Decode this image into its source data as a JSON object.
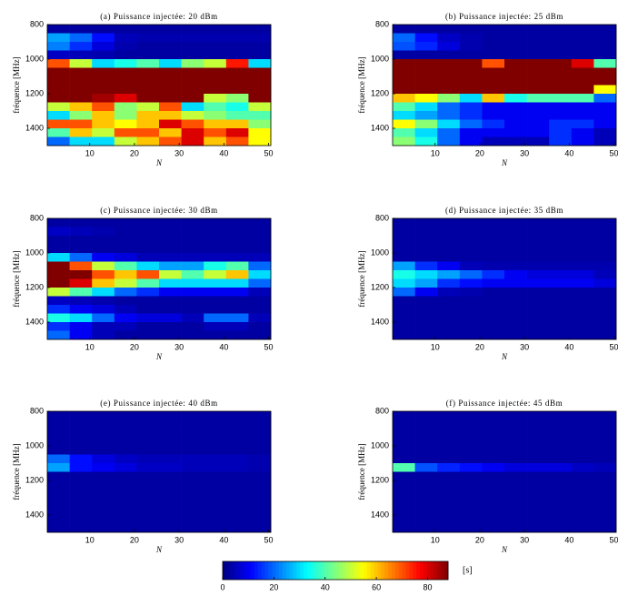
{
  "chart_data": [
    {
      "type": "heatmap",
      "title": "(a) Puissance injectée: 20 dBm",
      "xlabel": "N",
      "ylabel": "fréquence [MHz]",
      "x": [
        0.5,
        5.5,
        10.5,
        15.5,
        20.5,
        25.5,
        30.5,
        35.5,
        40.5,
        45.5,
        50.5
      ],
      "y": [
        800,
        850,
        900,
        950,
        1000,
        1050,
        1100,
        1150,
        1200,
        1250,
        1300,
        1350,
        1400,
        1450,
        1500
      ],
      "xlim": [
        0.5,
        50.5
      ],
      "ylim": [
        800,
        1500
      ],
      "y_reversed": true,
      "xticks": [
        10,
        20,
        30,
        40,
        50
      ],
      "yticks": [
        800,
        1000,
        1200,
        1400
      ],
      "values": [
        [
          3,
          3,
          3,
          3,
          3,
          3,
          3,
          3,
          3,
          3
        ],
        [
          25,
          20,
          12,
          5,
          4,
          4,
          4,
          4,
          4,
          4
        ],
        [
          22,
          15,
          8,
          4,
          3,
          3,
          3,
          3,
          3,
          3
        ],
        [
          6,
          5,
          4,
          3,
          3,
          3,
          3,
          3,
          3,
          3
        ],
        [
          70,
          50,
          30,
          35,
          40,
          30,
          45,
          50,
          75,
          30
        ],
        [
          88,
          88,
          88,
          88,
          88,
          88,
          88,
          88,
          88,
          88
        ],
        [
          88,
          88,
          88,
          88,
          88,
          88,
          88,
          88,
          88,
          88
        ],
        [
          88,
          88,
          88,
          88,
          88,
          88,
          88,
          88,
          88,
          88
        ],
        [
          88,
          88,
          85,
          80,
          88,
          88,
          88,
          50,
          45,
          88
        ],
        [
          50,
          60,
          70,
          45,
          50,
          70,
          30,
          40,
          35,
          50
        ],
        [
          30,
          45,
          60,
          45,
          60,
          60,
          50,
          45,
          40,
          40
        ],
        [
          70,
          70,
          60,
          55,
          60,
          80,
          70,
          60,
          60,
          45
        ],
        [
          40,
          60,
          50,
          70,
          70,
          60,
          80,
          70,
          80,
          55
        ],
        [
          20,
          30,
          30,
          50,
          60,
          70,
          80,
          60,
          70,
          55
        ]
      ]
    },
    {
      "type": "heatmap",
      "title": "(b) Puissance injectée: 25 dBm",
      "xlabel": "N",
      "ylabel": "fréquence [MHz]",
      "x": [
        0.5,
        5.5,
        10.5,
        15.5,
        20.5,
        25.5,
        30.5,
        35.5,
        40.5,
        45.5,
        50.5
      ],
      "y": [
        800,
        850,
        900,
        950,
        1000,
        1050,
        1100,
        1150,
        1200,
        1250,
        1300,
        1350,
        1400,
        1450,
        1500
      ],
      "xlim": [
        0.5,
        50.5
      ],
      "ylim": [
        800,
        1500
      ],
      "y_reversed": true,
      "xticks": [
        10,
        20,
        30,
        40,
        50
      ],
      "yticks": [
        800,
        1000,
        1200,
        1400
      ],
      "values": [
        [
          3,
          3,
          3,
          3,
          3,
          3,
          3,
          3,
          3,
          3
        ],
        [
          20,
          12,
          6,
          4,
          3,
          3,
          3,
          3,
          3,
          3
        ],
        [
          18,
          14,
          8,
          4,
          3,
          3,
          3,
          3,
          3,
          3
        ],
        [
          3,
          3,
          3,
          3,
          3,
          3,
          3,
          3,
          3,
          3
        ],
        [
          88,
          88,
          88,
          88,
          70,
          88,
          88,
          88,
          80,
          40
        ],
        [
          88,
          88,
          88,
          88,
          88,
          88,
          88,
          88,
          88,
          88
        ],
        [
          88,
          88,
          88,
          88,
          88,
          88,
          88,
          88,
          88,
          88
        ],
        [
          88,
          88,
          88,
          88,
          88,
          88,
          88,
          88,
          88,
          55
        ],
        [
          60,
          55,
          45,
          30,
          60,
          35,
          40,
          40,
          40,
          20
        ],
        [
          40,
          30,
          20,
          15,
          10,
          10,
          10,
          10,
          10,
          10
        ],
        [
          30,
          25,
          20,
          15,
          10,
          10,
          10,
          10,
          10,
          10
        ],
        [
          55,
          45,
          30,
          20,
          15,
          10,
          10,
          15,
          15,
          10
        ],
        [
          40,
          30,
          20,
          10,
          10,
          10,
          10,
          15,
          10,
          5
        ],
        [
          45,
          35,
          20,
          10,
          5,
          5,
          5,
          15,
          10,
          5
        ]
      ]
    },
    {
      "type": "heatmap",
      "title": "(c) Puissance injectée: 30 dBm",
      "xlabel": "N",
      "ylabel": "fréquence [MHz]",
      "x": [
        0.5,
        5.5,
        10.5,
        15.5,
        20.5,
        25.5,
        30.5,
        35.5,
        40.5,
        45.5,
        50.5
      ],
      "y": [
        800,
        850,
        900,
        950,
        1000,
        1050,
        1100,
        1150,
        1200,
        1250,
        1300,
        1350,
        1400,
        1450,
        1500
      ],
      "xlim": [
        0.5,
        50.5
      ],
      "ylim": [
        800,
        1500
      ],
      "y_reversed": true,
      "xticks": [
        10,
        20,
        30,
        40,
        50
      ],
      "yticks": [
        800,
        1000,
        1200,
        1400
      ],
      "values": [
        [
          3,
          3,
          3,
          3,
          3,
          3,
          3,
          3,
          3,
          3
        ],
        [
          6,
          5,
          4,
          3,
          3,
          3,
          3,
          3,
          3,
          3
        ],
        [
          3,
          3,
          3,
          3,
          3,
          3,
          3,
          3,
          3,
          3
        ],
        [
          3,
          3,
          3,
          3,
          3,
          3,
          3,
          3,
          3,
          3
        ],
        [
          30,
          20,
          10,
          8,
          5,
          5,
          5,
          5,
          5,
          5
        ],
        [
          88,
          70,
          50,
          40,
          30,
          25,
          25,
          35,
          40,
          20
        ],
        [
          88,
          88,
          70,
          60,
          70,
          50,
          40,
          50,
          60,
          30
        ],
        [
          88,
          80,
          60,
          50,
          40,
          30,
          30,
          30,
          30,
          20
        ],
        [
          50,
          40,
          30,
          20,
          15,
          10,
          10,
          10,
          10,
          5
        ],
        [
          6,
          5,
          4,
          3,
          3,
          3,
          3,
          3,
          3,
          3
        ],
        [
          15,
          10,
          8,
          5,
          3,
          3,
          3,
          3,
          3,
          3
        ],
        [
          35,
          30,
          20,
          10,
          8,
          8,
          5,
          20,
          20,
          5
        ],
        [
          15,
          10,
          5,
          5,
          3,
          3,
          3,
          5,
          5,
          3
        ],
        [
          20,
          10,
          5,
          3,
          3,
          3,
          3,
          3,
          3,
          3
        ]
      ]
    },
    {
      "type": "heatmap",
      "title": "(d) Puissance injectée: 35 dBm",
      "xlabel": "N",
      "ylabel": "fréquence [MHz]",
      "x": [
        0.5,
        5.5,
        10.5,
        15.5,
        20.5,
        25.5,
        30.5,
        35.5,
        40.5,
        45.5,
        50.5
      ],
      "y": [
        800,
        850,
        900,
        950,
        1000,
        1050,
        1100,
        1150,
        1200,
        1250,
        1300,
        1350,
        1400,
        1450,
        1500
      ],
      "xlim": [
        0.5,
        50.5
      ],
      "ylim": [
        800,
        1500
      ],
      "y_reversed": true,
      "xticks": [
        10,
        20,
        30,
        40,
        50
      ],
      "yticks": [
        800,
        1000,
        1200,
        1400
      ],
      "values": [
        [
          3,
          3,
          3,
          3,
          3,
          3,
          3,
          3,
          3,
          3
        ],
        [
          3,
          3,
          3,
          3,
          3,
          3,
          3,
          3,
          3,
          3
        ],
        [
          3,
          3,
          3,
          3,
          3,
          3,
          3,
          3,
          3,
          3
        ],
        [
          3,
          3,
          3,
          3,
          3,
          3,
          3,
          3,
          3,
          3
        ],
        [
          3,
          3,
          3,
          3,
          3,
          3,
          3,
          3,
          3,
          3
        ],
        [
          25,
          15,
          10,
          5,
          4,
          4,
          4,
          4,
          4,
          4
        ],
        [
          35,
          30,
          25,
          20,
          15,
          10,
          8,
          8,
          8,
          5
        ],
        [
          30,
          25,
          15,
          12,
          10,
          10,
          10,
          10,
          10,
          8
        ],
        [
          20,
          10,
          5,
          4,
          3,
          3,
          3,
          3,
          3,
          3
        ],
        [
          3,
          3,
          3,
          3,
          3,
          3,
          3,
          3,
          3,
          3
        ],
        [
          3,
          3,
          3,
          3,
          3,
          3,
          3,
          3,
          3,
          3
        ],
        [
          3,
          3,
          3,
          3,
          3,
          3,
          3,
          3,
          3,
          3
        ],
        [
          3,
          3,
          3,
          3,
          3,
          3,
          3,
          3,
          3,
          3
        ],
        [
          3,
          3,
          3,
          3,
          3,
          3,
          3,
          3,
          3,
          3
        ]
      ]
    },
    {
      "type": "heatmap",
      "title": "(e) Puissance injectée: 40 dBm",
      "xlabel": "N",
      "ylabel": "fréquence [MHz]",
      "x": [
        0.5,
        5.5,
        10.5,
        15.5,
        20.5,
        25.5,
        30.5,
        35.5,
        40.5,
        45.5,
        50.5
      ],
      "y": [
        800,
        850,
        900,
        950,
        1000,
        1050,
        1100,
        1150,
        1200,
        1250,
        1300,
        1350,
        1400,
        1450,
        1500
      ],
      "xlim": [
        0.5,
        50.5
      ],
      "ylim": [
        800,
        1500
      ],
      "y_reversed": true,
      "xticks": [
        10,
        20,
        30,
        40,
        50
      ],
      "yticks": [
        800,
        1000,
        1200,
        1400
      ],
      "values": [
        [
          3,
          3,
          3,
          3,
          3,
          3,
          3,
          3,
          3,
          3
        ],
        [
          3,
          3,
          3,
          3,
          3,
          3,
          3,
          3,
          3,
          3
        ],
        [
          3,
          3,
          3,
          3,
          3,
          3,
          3,
          3,
          3,
          3
        ],
        [
          3,
          3,
          3,
          3,
          3,
          3,
          3,
          3,
          3,
          3
        ],
        [
          3,
          3,
          3,
          3,
          3,
          3,
          3,
          3,
          3,
          3
        ],
        [
          20,
          12,
          8,
          6,
          5,
          5,
          5,
          5,
          5,
          4
        ],
        [
          25,
          12,
          10,
          8,
          6,
          6,
          5,
          5,
          5,
          4
        ],
        [
          3,
          3,
          3,
          3,
          3,
          3,
          3,
          3,
          3,
          3
        ],
        [
          3,
          3,
          3,
          3,
          3,
          3,
          3,
          3,
          3,
          3
        ],
        [
          3,
          3,
          3,
          3,
          3,
          3,
          3,
          3,
          3,
          3
        ],
        [
          3,
          3,
          3,
          3,
          3,
          3,
          3,
          3,
          3,
          3
        ],
        [
          3,
          3,
          3,
          3,
          3,
          3,
          3,
          3,
          3,
          3
        ],
        [
          3,
          3,
          3,
          3,
          3,
          3,
          3,
          3,
          3,
          3
        ],
        [
          3,
          3,
          3,
          3,
          3,
          3,
          3,
          3,
          3,
          3
        ]
      ]
    },
    {
      "type": "heatmap",
      "title": "(f) Puissance injectée: 45 dBm",
      "xlabel": "N",
      "ylabel": "fréquence [MHz]",
      "x": [
        0.5,
        5.5,
        10.5,
        15.5,
        20.5,
        25.5,
        30.5,
        35.5,
        40.5,
        45.5,
        50.5
      ],
      "y": [
        800,
        850,
        900,
        950,
        1000,
        1050,
        1100,
        1150,
        1200,
        1250,
        1300,
        1350,
        1400,
        1450,
        1500
      ],
      "xlim": [
        0.5,
        50.5
      ],
      "ylim": [
        800,
        1500
      ],
      "y_reversed": true,
      "xticks": [
        10,
        20,
        30,
        40,
        50
      ],
      "yticks": [
        800,
        1000,
        1200,
        1400
      ],
      "values": [
        [
          3,
          3,
          3,
          3,
          3,
          3,
          3,
          3,
          3,
          3
        ],
        [
          3,
          3,
          3,
          3,
          3,
          3,
          3,
          3,
          3,
          3
        ],
        [
          3,
          3,
          3,
          3,
          3,
          3,
          3,
          3,
          3,
          3
        ],
        [
          3,
          3,
          3,
          3,
          3,
          3,
          3,
          3,
          3,
          3
        ],
        [
          3,
          3,
          3,
          3,
          3,
          3,
          3,
          3,
          3,
          3
        ],
        [
          3,
          3,
          3,
          3,
          3,
          3,
          3,
          3,
          3,
          3
        ],
        [
          40,
          18,
          14,
          12,
          10,
          8,
          8,
          8,
          6,
          5
        ],
        [
          3,
          3,
          3,
          3,
          3,
          3,
          3,
          3,
          3,
          3
        ],
        [
          3,
          3,
          3,
          3,
          3,
          3,
          3,
          3,
          3,
          3
        ],
        [
          3,
          3,
          3,
          3,
          3,
          3,
          3,
          3,
          3,
          3
        ],
        [
          3,
          3,
          3,
          3,
          3,
          3,
          3,
          3,
          3,
          3
        ],
        [
          3,
          3,
          3,
          3,
          3,
          3,
          3,
          3,
          3,
          3
        ],
        [
          3,
          3,
          3,
          3,
          3,
          3,
          3,
          3,
          3,
          3
        ],
        [
          3,
          3,
          3,
          3,
          3,
          3,
          3,
          3,
          3,
          3
        ]
      ]
    }
  ],
  "colorbar": {
    "colormap": "jet",
    "lim": [
      0,
      88
    ],
    "ticks": [
      0,
      20,
      40,
      60,
      80
    ],
    "label": "[s]"
  }
}
